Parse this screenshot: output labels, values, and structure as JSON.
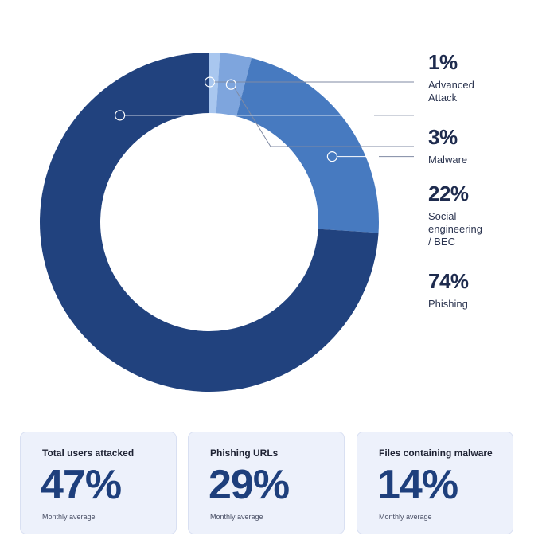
{
  "chart_data": {
    "type": "pie",
    "donut": true,
    "slices": [
      {
        "label": "Advanced\nAttack",
        "value": 1,
        "display": "1%",
        "color": "#a9c7ef"
      },
      {
        "label": "Malware",
        "value": 3,
        "display": "3%",
        "color": "#7ea5dd"
      },
      {
        "label": "Social\nengineering\n/ BEC",
        "value": 22,
        "display": "22%",
        "color": "#477ac0"
      },
      {
        "label": "Phishing",
        "value": 74,
        "display": "74%",
        "color": "#21427e"
      }
    ],
    "legend_position": "right",
    "colors": {
      "callout_line": "#7f8aa3"
    }
  },
  "stats": [
    {
      "title": "Total users attacked",
      "value": "47%",
      "note": "Monthly average"
    },
    {
      "title": "Phishing URLs",
      "value": "29%",
      "note": "Monthly average"
    },
    {
      "title": "Files containing malware",
      "value": "14%",
      "note": "Monthly average"
    }
  ]
}
